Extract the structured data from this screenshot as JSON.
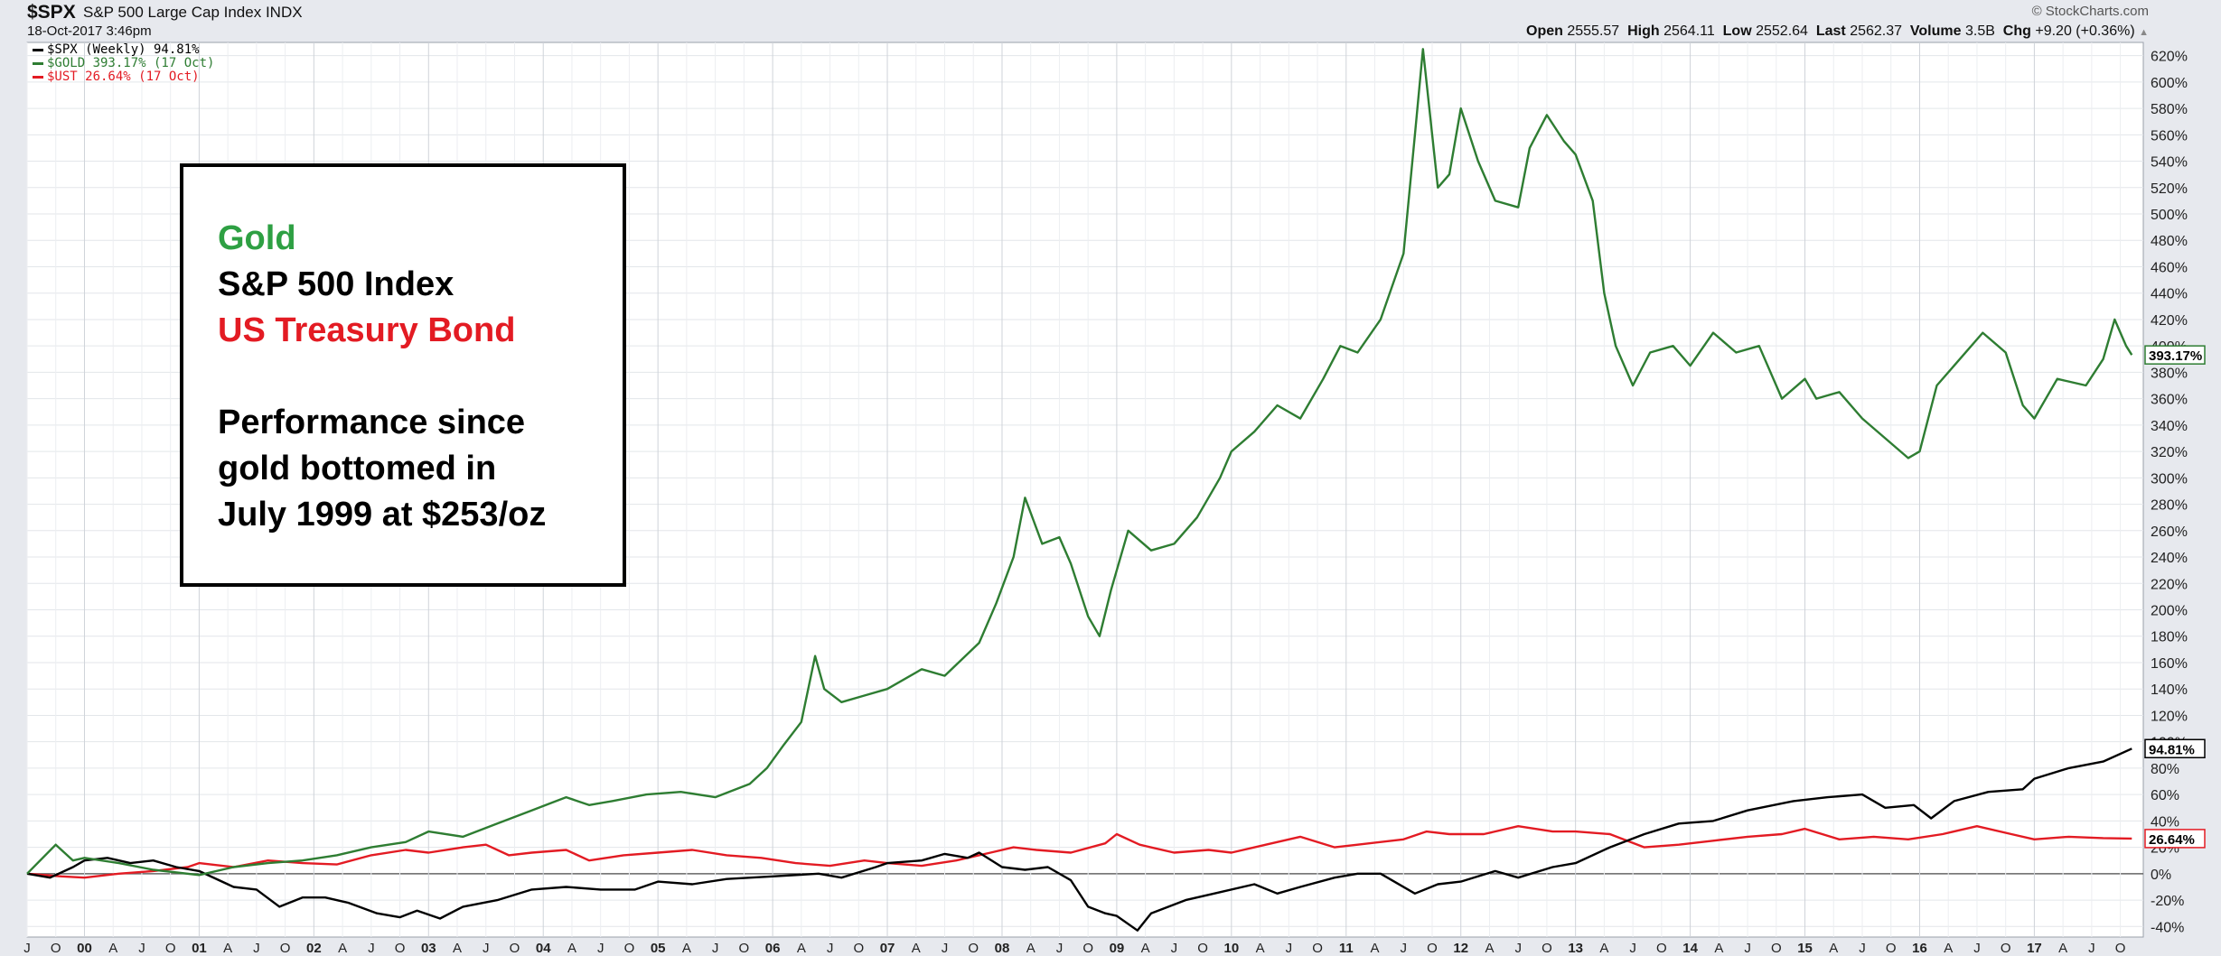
{
  "header": {
    "symbol": "$SPX",
    "symbol_name": "S&P 500 Large Cap Index",
    "exchange": "INDX",
    "datetime": "18-Oct-2017 3:46pm",
    "copyright": "© StockCharts.com",
    "quote": [
      {
        "label": "Open",
        "value": "2555.57"
      },
      {
        "label": "High",
        "value": "2564.11"
      },
      {
        "label": "Low",
        "value": "2552.64"
      },
      {
        "label": "Last",
        "value": "2562.37"
      },
      {
        "label": "Volume",
        "value": "3.5B"
      },
      {
        "label": "Chg",
        "value": "+9.20 (+0.36%)"
      }
    ],
    "chg_arrow": "▲"
  },
  "legend": [
    {
      "text": "$SPX (Weekly) 94.81%",
      "color": "#000000"
    },
    {
      "text": "$GOLD 393.17% (17 Oct)",
      "color": "#2e7d32"
    },
    {
      "text": "$UST 26.64% (17 Oct)",
      "color": "#e31b23"
    }
  ],
  "annotation": {
    "line1": "Gold",
    "line2": "S&P 500 Index",
    "line3": "US Treasury Bond",
    "line4": "Performance since",
    "line5": "gold bottomed in",
    "line6": "July 1999 at $253/oz",
    "colors": {
      "gold": "#2ea043",
      "spx": "#000000",
      "ust": "#e31b23"
    }
  },
  "chart_data": {
    "type": "line",
    "x_unit": "decimal year",
    "xlim": [
      1999.5,
      2017.95
    ],
    "ylim": [
      -48,
      630
    ],
    "y_ticks": [
      -40,
      -20,
      0,
      20,
      40,
      60,
      80,
      100,
      120,
      140,
      160,
      180,
      200,
      220,
      240,
      260,
      280,
      300,
      320,
      340,
      360,
      380,
      400,
      420,
      440,
      460,
      480,
      500,
      520,
      540,
      560,
      580,
      600,
      620
    ],
    "y_tick_suffix": "%",
    "grid": true,
    "x_tick_labels": [
      "J",
      "O",
      "00",
      "A",
      "J",
      "O",
      "01",
      "A",
      "J",
      "O",
      "02",
      "A",
      "J",
      "O",
      "03",
      "A",
      "J",
      "O",
      "04",
      "A",
      "J",
      "O",
      "05",
      "A",
      "J",
      "O",
      "06",
      "A",
      "J",
      "O",
      "07",
      "A",
      "J",
      "O",
      "08",
      "A",
      "J",
      "O",
      "09",
      "A",
      "J",
      "O",
      "10",
      "A",
      "J",
      "O",
      "11",
      "A",
      "J",
      "O",
      "12",
      "A",
      "J",
      "O",
      "13",
      "A",
      "J",
      "O",
      "14",
      "A",
      "J",
      "O",
      "15",
      "A",
      "J",
      "O",
      "16",
      "A",
      "J",
      "O",
      "17",
      "A",
      "J",
      "O"
    ],
    "last_value_labels": [
      {
        "series": "$GOLD",
        "text": "393.17%",
        "color": "#2e7d32"
      },
      {
        "series": "$SPX",
        "text": "94.81%",
        "color": "#000000"
      },
      {
        "series": "$UST",
        "text": "26.64%",
        "color": "#e31b23"
      }
    ],
    "series": [
      {
        "name": "$GOLD",
        "color": "#2e7d32",
        "points": [
          [
            1999.5,
            0
          ],
          [
            1999.75,
            22
          ],
          [
            1999.9,
            10
          ],
          [
            2000.0,
            12
          ],
          [
            2000.3,
            8
          ],
          [
            2000.6,
            3
          ],
          [
            2001.0,
            -1
          ],
          [
            2001.3,
            5
          ],
          [
            2001.6,
            8
          ],
          [
            2001.9,
            10
          ],
          [
            2002.2,
            14
          ],
          [
            2002.5,
            20
          ],
          [
            2002.8,
            24
          ],
          [
            2003.0,
            32
          ],
          [
            2003.3,
            28
          ],
          [
            2003.6,
            38
          ],
          [
            2003.9,
            48
          ],
          [
            2004.2,
            58
          ],
          [
            2004.4,
            52
          ],
          [
            2004.6,
            55
          ],
          [
            2004.9,
            60
          ],
          [
            2005.2,
            62
          ],
          [
            2005.5,
            58
          ],
          [
            2005.8,
            68
          ],
          [
            2005.95,
            80
          ],
          [
            2006.1,
            98
          ],
          [
            2006.25,
            115
          ],
          [
            2006.37,
            165
          ],
          [
            2006.45,
            140
          ],
          [
            2006.6,
            130
          ],
          [
            2006.8,
            135
          ],
          [
            2007.0,
            140
          ],
          [
            2007.3,
            155
          ],
          [
            2007.5,
            150
          ],
          [
            2007.8,
            175
          ],
          [
            2007.95,
            205
          ],
          [
            2008.1,
            240
          ],
          [
            2008.2,
            285
          ],
          [
            2008.35,
            250
          ],
          [
            2008.5,
            255
          ],
          [
            2008.6,
            235
          ],
          [
            2008.75,
            195
          ],
          [
            2008.85,
            180
          ],
          [
            2008.95,
            215
          ],
          [
            2009.1,
            260
          ],
          [
            2009.3,
            245
          ],
          [
            2009.5,
            250
          ],
          [
            2009.7,
            270
          ],
          [
            2009.9,
            300
          ],
          [
            2010.0,
            320
          ],
          [
            2010.2,
            335
          ],
          [
            2010.4,
            355
          ],
          [
            2010.6,
            345
          ],
          [
            2010.8,
            375
          ],
          [
            2010.95,
            400
          ],
          [
            2011.1,
            395
          ],
          [
            2011.3,
            420
          ],
          [
            2011.5,
            470
          ],
          [
            2011.6,
            560
          ],
          [
            2011.67,
            625
          ],
          [
            2011.8,
            520
          ],
          [
            2011.9,
            530
          ],
          [
            2012.0,
            580
          ],
          [
            2012.15,
            540
          ],
          [
            2012.3,
            510
          ],
          [
            2012.5,
            505
          ],
          [
            2012.6,
            550
          ],
          [
            2012.75,
            575
          ],
          [
            2012.9,
            555
          ],
          [
            2013.0,
            545
          ],
          [
            2013.15,
            510
          ],
          [
            2013.25,
            440
          ],
          [
            2013.35,
            400
          ],
          [
            2013.5,
            370
          ],
          [
            2013.65,
            395
          ],
          [
            2013.85,
            400
          ],
          [
            2014.0,
            385
          ],
          [
            2014.2,
            410
          ],
          [
            2014.4,
            395
          ],
          [
            2014.6,
            400
          ],
          [
            2014.8,
            360
          ],
          [
            2015.0,
            375
          ],
          [
            2015.1,
            360
          ],
          [
            2015.3,
            365
          ],
          [
            2015.5,
            345
          ],
          [
            2015.7,
            330
          ],
          [
            2015.9,
            315
          ],
          [
            2016.0,
            320
          ],
          [
            2016.15,
            370
          ],
          [
            2016.3,
            385
          ],
          [
            2016.55,
            410
          ],
          [
            2016.75,
            395
          ],
          [
            2016.9,
            355
          ],
          [
            2017.0,
            345
          ],
          [
            2017.2,
            375
          ],
          [
            2017.45,
            370
          ],
          [
            2017.6,
            390
          ],
          [
            2017.7,
            420
          ],
          [
            2017.8,
            400
          ],
          [
            2017.85,
            393.17
          ]
        ]
      },
      {
        "name": "$SPX",
        "color": "#000000",
        "points": [
          [
            1999.5,
            0
          ],
          [
            1999.7,
            -3
          ],
          [
            1999.9,
            5
          ],
          [
            2000.0,
            10
          ],
          [
            2000.2,
            12
          ],
          [
            2000.4,
            8
          ],
          [
            2000.6,
            10
          ],
          [
            2000.8,
            5
          ],
          [
            2001.0,
            2
          ],
          [
            2001.3,
            -10
          ],
          [
            2001.5,
            -12
          ],
          [
            2001.7,
            -25
          ],
          [
            2001.9,
            -18
          ],
          [
            2002.1,
            -18
          ],
          [
            2002.3,
            -22
          ],
          [
            2002.55,
            -30
          ],
          [
            2002.75,
            -33
          ],
          [
            2002.9,
            -28
          ],
          [
            2003.1,
            -34
          ],
          [
            2003.3,
            -25
          ],
          [
            2003.6,
            -20
          ],
          [
            2003.9,
            -12
          ],
          [
            2004.2,
            -10
          ],
          [
            2004.5,
            -12
          ],
          [
            2004.8,
            -12
          ],
          [
            2005.0,
            -6
          ],
          [
            2005.3,
            -8
          ],
          [
            2005.6,
            -4
          ],
          [
            2006.0,
            -2
          ],
          [
            2006.4,
            0
          ],
          [
            2006.6,
            -3
          ],
          [
            2006.9,
            5
          ],
          [
            2007.0,
            8
          ],
          [
            2007.3,
            10
          ],
          [
            2007.5,
            15
          ],
          [
            2007.7,
            12
          ],
          [
            2007.8,
            16
          ],
          [
            2008.0,
            5
          ],
          [
            2008.2,
            3
          ],
          [
            2008.4,
            5
          ],
          [
            2008.6,
            -5
          ],
          [
            2008.75,
            -25
          ],
          [
            2008.9,
            -30
          ],
          [
            2009.0,
            -32
          ],
          [
            2009.18,
            -43
          ],
          [
            2009.3,
            -30
          ],
          [
            2009.6,
            -20
          ],
          [
            2009.9,
            -14
          ],
          [
            2010.2,
            -8
          ],
          [
            2010.4,
            -15
          ],
          [
            2010.6,
            -10
          ],
          [
            2010.9,
            -3
          ],
          [
            2011.1,
            0
          ],
          [
            2011.3,
            0
          ],
          [
            2011.6,
            -15
          ],
          [
            2011.8,
            -8
          ],
          [
            2012.0,
            -6
          ],
          [
            2012.3,
            2
          ],
          [
            2012.5,
            -3
          ],
          [
            2012.8,
            5
          ],
          [
            2013.0,
            8
          ],
          [
            2013.3,
            20
          ],
          [
            2013.6,
            30
          ],
          [
            2013.9,
            38
          ],
          [
            2014.2,
            40
          ],
          [
            2014.5,
            48
          ],
          [
            2014.9,
            55
          ],
          [
            2015.2,
            58
          ],
          [
            2015.5,
            60
          ],
          [
            2015.7,
            50
          ],
          [
            2015.95,
            52
          ],
          [
            2016.1,
            42
          ],
          [
            2016.3,
            55
          ],
          [
            2016.6,
            62
          ],
          [
            2016.9,
            64
          ],
          [
            2017.0,
            72
          ],
          [
            2017.3,
            80
          ],
          [
            2017.6,
            85
          ],
          [
            2017.85,
            94.81
          ]
        ]
      },
      {
        "name": "$UST",
        "color": "#e31b23",
        "points": [
          [
            1999.5,
            0
          ],
          [
            1999.8,
            -2
          ],
          [
            2000.0,
            -3
          ],
          [
            2000.3,
            0
          ],
          [
            2000.6,
            2
          ],
          [
            2000.9,
            5
          ],
          [
            2001.0,
            8
          ],
          [
            2001.3,
            5
          ],
          [
            2001.6,
            10
          ],
          [
            2001.9,
            8
          ],
          [
            2002.2,
            7
          ],
          [
            2002.5,
            14
          ],
          [
            2002.8,
            18
          ],
          [
            2003.0,
            16
          ],
          [
            2003.3,
            20
          ],
          [
            2003.5,
            22
          ],
          [
            2003.7,
            14
          ],
          [
            2003.9,
            16
          ],
          [
            2004.2,
            18
          ],
          [
            2004.4,
            10
          ],
          [
            2004.7,
            14
          ],
          [
            2005.0,
            16
          ],
          [
            2005.3,
            18
          ],
          [
            2005.6,
            14
          ],
          [
            2005.9,
            12
          ],
          [
            2006.2,
            8
          ],
          [
            2006.5,
            6
          ],
          [
            2006.8,
            10
          ],
          [
            2007.0,
            8
          ],
          [
            2007.3,
            6
          ],
          [
            2007.6,
            10
          ],
          [
            2007.9,
            16
          ],
          [
            2008.1,
            20
          ],
          [
            2008.3,
            18
          ],
          [
            2008.6,
            16
          ],
          [
            2008.9,
            23
          ],
          [
            2009.0,
            30
          ],
          [
            2009.2,
            22
          ],
          [
            2009.5,
            16
          ],
          [
            2009.8,
            18
          ],
          [
            2010.0,
            16
          ],
          [
            2010.3,
            22
          ],
          [
            2010.6,
            28
          ],
          [
            2010.9,
            20
          ],
          [
            2011.1,
            22
          ],
          [
            2011.5,
            26
          ],
          [
            2011.7,
            32
          ],
          [
            2011.9,
            30
          ],
          [
            2012.2,
            30
          ],
          [
            2012.5,
            36
          ],
          [
            2012.8,
            32
          ],
          [
            2013.0,
            32
          ],
          [
            2013.3,
            30
          ],
          [
            2013.6,
            20
          ],
          [
            2013.9,
            22
          ],
          [
            2014.2,
            25
          ],
          [
            2014.5,
            28
          ],
          [
            2014.8,
            30
          ],
          [
            2015.0,
            34
          ],
          [
            2015.3,
            26
          ],
          [
            2015.6,
            28
          ],
          [
            2015.9,
            26
          ],
          [
            2016.2,
            30
          ],
          [
            2016.5,
            36
          ],
          [
            2016.8,
            30
          ],
          [
            2017.0,
            26
          ],
          [
            2017.3,
            28
          ],
          [
            2017.6,
            27
          ],
          [
            2017.85,
            26.64
          ]
        ]
      }
    ]
  }
}
